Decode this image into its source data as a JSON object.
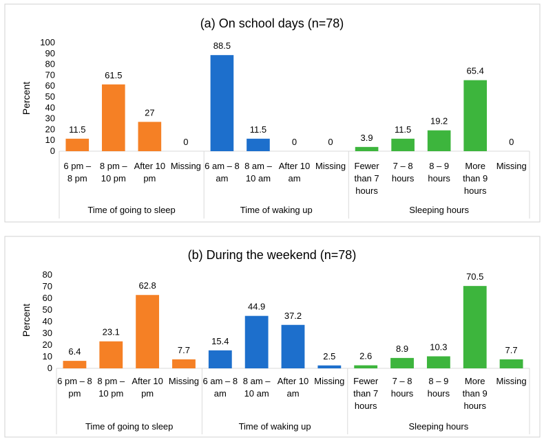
{
  "chart_data": [
    {
      "type": "bar",
      "title": "(a) On school days (n=78)",
      "ylabel": "Percent",
      "xlabel": "",
      "ylim": [
        0,
        100
      ],
      "yticks": [
        0,
        10,
        20,
        30,
        40,
        50,
        60,
        70,
        80,
        90,
        100
      ],
      "grid": false,
      "legend": "none",
      "groups": [
        {
          "name": "Time of going to sleep",
          "color": "#f58025",
          "bars": [
            {
              "label": [
                "6 pm –",
                "8 pm"
              ],
              "value": 11.5,
              "value_label": "11.5"
            },
            {
              "label": [
                "8 pm –",
                "10 pm"
              ],
              "value": 61.5,
              "value_label": "61.5"
            },
            {
              "label": [
                "After 10",
                "pm"
              ],
              "value": 27,
              "value_label": "27"
            },
            {
              "label": [
                "Missing"
              ],
              "value": 0,
              "value_label": "0"
            }
          ]
        },
        {
          "name": "Time of waking up",
          "color": "#1d6fcc",
          "bars": [
            {
              "label": [
                "6 am – 8",
                "am"
              ],
              "value": 88.5,
              "value_label": "88.5"
            },
            {
              "label": [
                "8 am –",
                "10 am"
              ],
              "value": 11.5,
              "value_label": "11.5"
            },
            {
              "label": [
                "After 10",
                "am"
              ],
              "value": 0,
              "value_label": "0"
            },
            {
              "label": [
                "Missing"
              ],
              "value": 0,
              "value_label": "0"
            }
          ]
        },
        {
          "name": "Sleeping hours",
          "color": "#3db53d",
          "bars": [
            {
              "label": [
                "Fewer",
                "than 7",
                "hours"
              ],
              "value": 3.9,
              "value_label": "3.9"
            },
            {
              "label": [
                "7 – 8",
                "hours"
              ],
              "value": 11.5,
              "value_label": "11.5"
            },
            {
              "label": [
                "8 – 9",
                "hours"
              ],
              "value": 19.2,
              "value_label": "19.2"
            },
            {
              "label": [
                "More",
                "than 9",
                "hours"
              ],
              "value": 65.4,
              "value_label": "65.4"
            },
            {
              "label": [
                "Missing"
              ],
              "value": 0,
              "value_label": "0"
            }
          ]
        }
      ]
    },
    {
      "type": "bar",
      "title": "(b) During the weekend (n=78)",
      "ylabel": "Percent",
      "xlabel": "",
      "ylim": [
        0,
        80
      ],
      "yticks": [
        0,
        10,
        20,
        30,
        40,
        50,
        60,
        70,
        80
      ],
      "grid": false,
      "legend": "none",
      "groups": [
        {
          "name": "Time of going to sleep",
          "color": "#f58025",
          "bars": [
            {
              "label": [
                "6 pm – 8",
                "pm"
              ],
              "value": 6.4,
              "value_label": "6.4"
            },
            {
              "label": [
                "8 pm –",
                "10 pm"
              ],
              "value": 23.1,
              "value_label": "23.1"
            },
            {
              "label": [
                "After 10",
                "pm"
              ],
              "value": 62.8,
              "value_label": "62.8"
            },
            {
              "label": [
                "Missing"
              ],
              "value": 7.7,
              "value_label": "7.7"
            }
          ]
        },
        {
          "name": "Time of waking up",
          "color": "#1d6fcc",
          "bars": [
            {
              "label": [
                "6 am – 8",
                "am"
              ],
              "value": 15.4,
              "value_label": "15.4"
            },
            {
              "label": [
                "8 am –",
                "10 am"
              ],
              "value": 44.9,
              "value_label": "44.9"
            },
            {
              "label": [
                "After 10",
                "am"
              ],
              "value": 37.2,
              "value_label": "37.2"
            },
            {
              "label": [
                "Missing"
              ],
              "value": 2.5,
              "value_label": "2.5"
            }
          ]
        },
        {
          "name": "Sleeping hours",
          "color": "#3db53d",
          "bars": [
            {
              "label": [
                "Fewer",
                "than 7",
                "hours"
              ],
              "value": 2.6,
              "value_label": "2.6"
            },
            {
              "label": [
                "7 – 8",
                "hours"
              ],
              "value": 8.9,
              "value_label": "8.9"
            },
            {
              "label": [
                "8 – 9",
                "hours"
              ],
              "value": 10.3,
              "value_label": "10.3"
            },
            {
              "label": [
                "More",
                "than 9",
                "hours"
              ],
              "value": 70.5,
              "value_label": "70.5"
            },
            {
              "label": [
                "Missing"
              ],
              "value": 7.7,
              "value_label": "7.7"
            }
          ]
        }
      ]
    }
  ]
}
